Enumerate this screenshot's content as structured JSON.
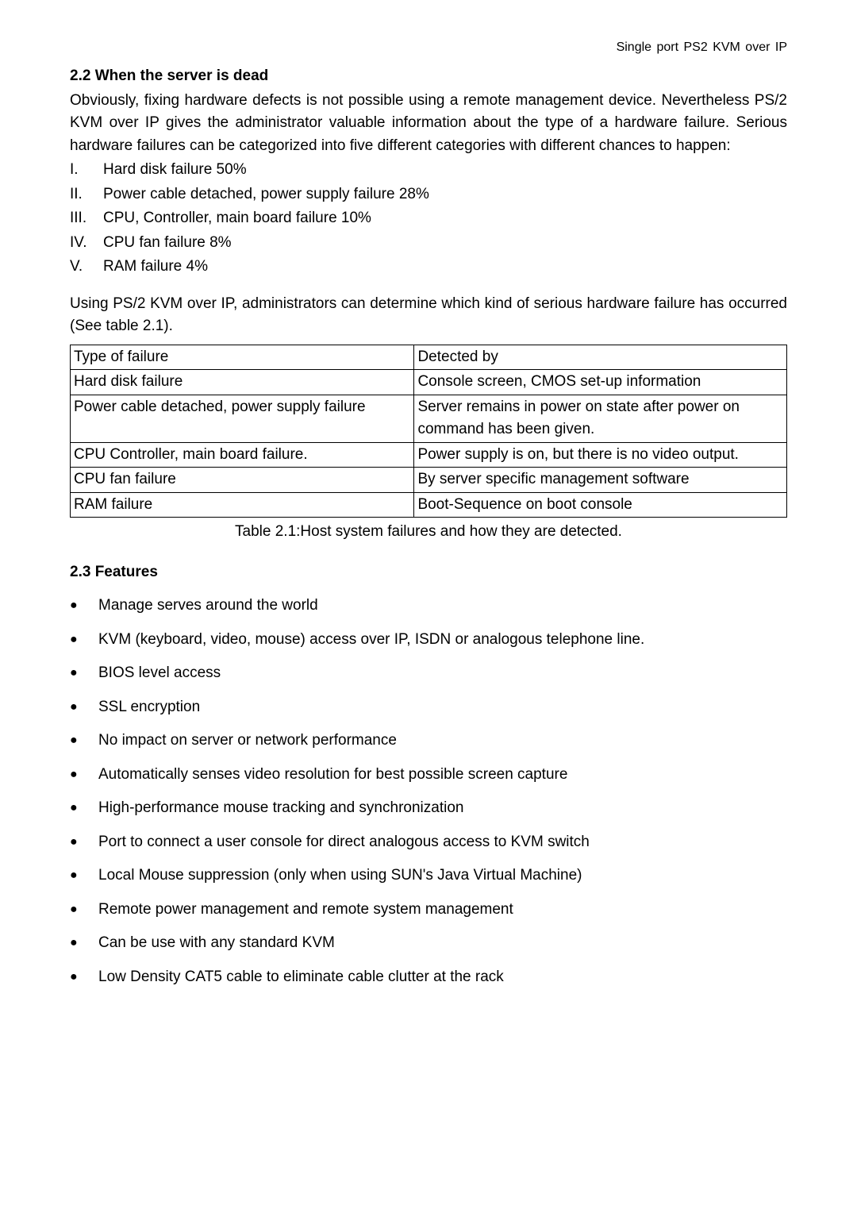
{
  "header": {
    "running_title": "Single port PS2 KVM over IP"
  },
  "section22": {
    "title": "2.2 When the server is dead",
    "intro": "Obviously, fixing hardware defects is not possible using a remote management device. Nevertheless PS/2 KVM over IP gives the administrator valuable information about the type of a hardware failure. Serious hardware failures can be categorized into five different categories with different chances to happen:",
    "items": [
      {
        "num": "I.",
        "text": "Hard disk failure 50%"
      },
      {
        "num": "II.",
        "text": "Power cable detached, power supply failure 28%"
      },
      {
        "num": "III.",
        "text": "CPU, Controller, main board failure 10%"
      },
      {
        "num": "IV.",
        "text": "CPU fan failure 8%"
      },
      {
        "num": "V.",
        "text": "RAM failure 4%"
      }
    ],
    "para2": "Using PS/2 KVM over IP, administrators can determine which kind of serious hardware failure has occurred (See table 2.1)."
  },
  "table": {
    "header": {
      "c1": "Type of failure",
      "c2": "Detected by"
    },
    "rows": [
      {
        "c1": "Hard disk failure",
        "c2": "Console screen, CMOS set-up information"
      },
      {
        "c1": "Power cable detached, power supply failure",
        "c2": "Server remains in power on state after power on command has been given."
      },
      {
        "c1": "CPU Controller, main board failure.",
        "c2": "Power supply is on, but there is no video output."
      },
      {
        "c1": "CPU fan failure",
        "c2": "By server specific management software"
      },
      {
        "c1": "RAM failure",
        "c2": "Boot-Sequence on boot console"
      }
    ],
    "caption": "Table 2.1:Host system failures and how they are detected."
  },
  "section23": {
    "title": "2.3 Features",
    "items": [
      "Manage serves around the world",
      "KVM (keyboard, video, mouse) access over IP, ISDN or analogous telephone line.",
      "BIOS level access",
      "SSL encryption",
      "No impact on server or network performance",
      "Automatically senses video resolution for best possible screen capture",
      "High-performance mouse tracking and synchronization",
      "Port to connect a user console for direct analogous access to KVM switch",
      "Local Mouse suppression (only when using SUN's Java Virtual Machine)",
      "Remote power management and remote system management",
      "Can be use with any standard KVM",
      "Low Density CAT5 cable to eliminate cable clutter at the rack"
    ]
  },
  "bullet_glyph": "●"
}
